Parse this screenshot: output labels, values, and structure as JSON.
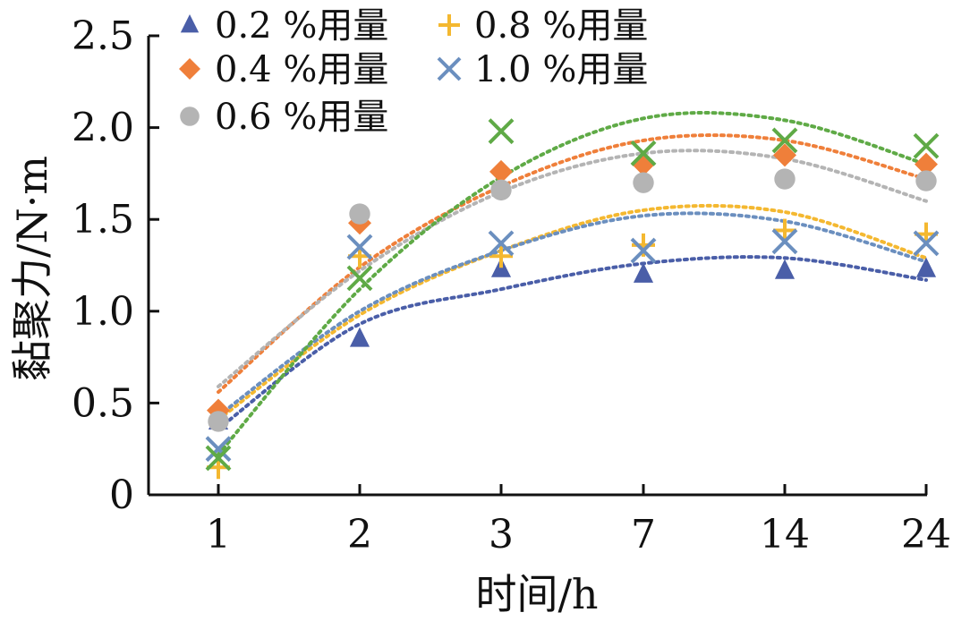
{
  "chart_data": {
    "type": "scatter",
    "xlabel": "时间/h",
    "ylabel": "黏聚力/N·m",
    "categories": [
      "1",
      "2",
      "3",
      "7",
      "14",
      "24"
    ],
    "ylim": [
      0,
      2.5
    ],
    "yticks": [
      "0",
      "0.5",
      "1.0",
      "1.5",
      "2.0",
      "2.5"
    ],
    "trendline": "polynomial",
    "legend_position": "top-left",
    "series": [
      {
        "name": "0.2 %用量",
        "marker": "triangle",
        "color": "#4a5ea8",
        "values": [
          0.4,
          0.85,
          1.23,
          1.2,
          1.22,
          1.23
        ]
      },
      {
        "name": "0.4 %用量",
        "marker": "diamond",
        "color": "#ef7f3a",
        "values": [
          0.46,
          1.48,
          1.76,
          1.8,
          1.85,
          1.8
        ]
      },
      {
        "name": "0.6 %用量",
        "marker": "circle",
        "color": "#b4b4b4",
        "values": [
          0.4,
          1.53,
          1.66,
          1.7,
          1.72,
          1.71
        ]
      },
      {
        "name": "0.8 %用量",
        "marker": "plus",
        "color": "#f4b830",
        "values": [
          0.15,
          1.3,
          1.3,
          1.36,
          1.44,
          1.42
        ]
      },
      {
        "name": "1.0 %用量",
        "marker": "x",
        "color": "#6b8fbf",
        "values": [
          0.25,
          1.35,
          1.37,
          1.33,
          1.38,
          1.37
        ]
      },
      {
        "name": "",
        "marker": "x",
        "color": "#5faa46",
        "values": [
          0.2,
          1.18,
          1.98,
          1.86,
          1.93,
          1.9
        ]
      }
    ],
    "trend": [
      {
        "color": "#4a5ea8",
        "values": [
          0.36,
          0.93,
          1.12,
          1.26,
          1.29,
          1.17
        ]
      },
      {
        "color": "#ef7f3a",
        "values": [
          0.56,
          1.24,
          1.68,
          1.93,
          1.93,
          1.72
        ]
      },
      {
        "color": "#b4b4b4",
        "values": [
          0.59,
          1.22,
          1.65,
          1.86,
          1.83,
          1.6
        ]
      },
      {
        "color": "#f4b830",
        "values": [
          0.41,
          0.98,
          1.33,
          1.55,
          1.54,
          1.29
        ]
      },
      {
        "color": "#6b8fbf",
        "values": [
          0.43,
          1.0,
          1.33,
          1.52,
          1.49,
          1.27
        ]
      },
      {
        "color": "#5faa46",
        "values": [
          0.22,
          1.12,
          1.73,
          2.05,
          2.04,
          1.8
        ]
      }
    ]
  }
}
